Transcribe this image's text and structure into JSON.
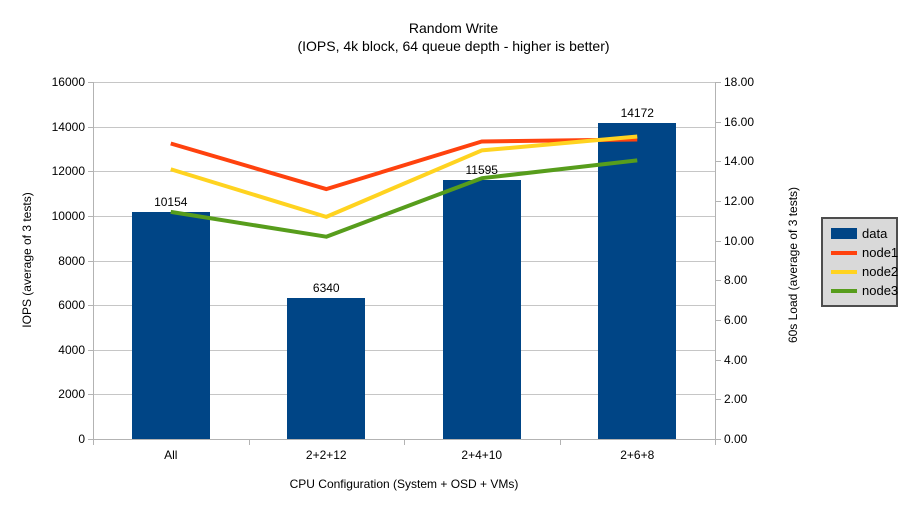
{
  "chart_data": {
    "type": "combo-bar-line",
    "title": "Random Write",
    "subtitle": "(IOPS, 4k block, 64 queue depth - higher is better)",
    "categories": [
      "All",
      "2+2+12",
      "2+4+10",
      "2+6+8"
    ],
    "xlabel": "CPU Configuration (System + OSD + VMs)",
    "left_axis": {
      "label": "IOPS (average of 3 tests)",
      "min": 0,
      "max": 16000,
      "step": 2000,
      "tick_labels": [
        "16000",
        "14000",
        "12000",
        "10000",
        "8000",
        "6000",
        "4000",
        "2000",
        "0"
      ]
    },
    "right_axis": {
      "label": "60s Load (average of 3 tests)",
      "min": 0,
      "max": 18,
      "step": 2,
      "tick_labels": [
        "18.00",
        "16.00",
        "14.00",
        "12.00",
        "10.00",
        "8.00",
        "6.00",
        "4.00",
        "2.00",
        "0.00"
      ]
    },
    "grid": true,
    "legend": {
      "position": "right",
      "entries": [
        "data",
        "node1",
        "node2",
        "node3"
      ]
    },
    "series": [
      {
        "name": "data",
        "type": "bar",
        "axis": "left",
        "color": "#004586",
        "values": [
          10154,
          6340,
          11595,
          14172
        ],
        "value_labels": [
          "10154",
          "6340",
          "11595",
          "14172"
        ]
      },
      {
        "name": "node1",
        "type": "line",
        "axis": "right",
        "color": "#FF420E",
        "values": [
          14.9,
          12.6,
          15.0,
          15.1
        ]
      },
      {
        "name": "node2",
        "type": "line",
        "axis": "right",
        "color": "#FFD320",
        "values": [
          13.6,
          11.2,
          14.55,
          15.25
        ]
      },
      {
        "name": "node3",
        "type": "line",
        "axis": "right",
        "color": "#579D1C",
        "values": [
          11.45,
          10.2,
          13.15,
          14.05
        ]
      }
    ],
    "colors": {
      "grid": "#c6c6c6",
      "axis": "#b3b3b3",
      "text": "#000000",
      "legend_bg": "#d9d9d9",
      "legend_border": "#4d4d4d",
      "background": "#ffffff"
    }
  }
}
